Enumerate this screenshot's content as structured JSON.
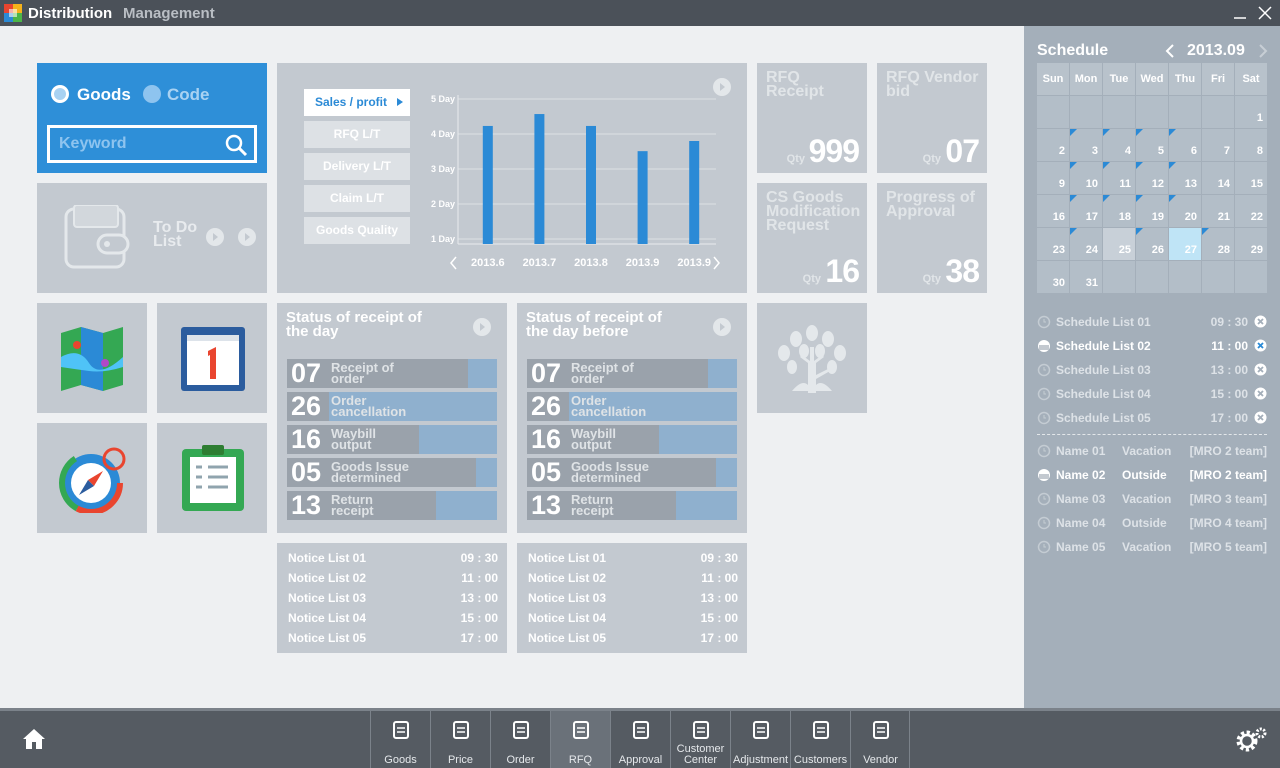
{
  "app": {
    "title_bold": "Distribution",
    "title_rest": "Management"
  },
  "search": {
    "options": [
      "Goods",
      "Code"
    ],
    "placeholder": "Keyword"
  },
  "todo": {
    "label": "To Do List"
  },
  "tabs": [
    "Sales / profit",
    "RFQ L/T",
    "Delivery L/T",
    "Claim L/T",
    "Goods Quality"
  ],
  "chart_data": {
    "type": "bar",
    "color": "#2b8ad6",
    "categories": [
      "2013.6",
      "2013.7",
      "2013.8",
      "2013.9",
      "2013.9"
    ],
    "values": [
      4.23,
      4.57,
      4.23,
      3.51,
      3.8
    ],
    "ylim": [
      1,
      5
    ],
    "yticks": [
      {
        "value": 1,
        "label": "1 Day"
      },
      {
        "value": 2,
        "label": "2 Day"
      },
      {
        "value": 3,
        "label": "3 Day"
      },
      {
        "value": 4,
        "label": "4 Day"
      },
      {
        "value": 5,
        "label": "5 Day"
      }
    ],
    "grid": true
  },
  "tiles": [
    {
      "title": "RFQ Receipt",
      "qty_label": "Qty",
      "qty": "999"
    },
    {
      "title": "RFQ Vendor bid",
      "qty_label": "Qty",
      "qty": "07"
    },
    {
      "title": "CS Goods Modification Request",
      "qty_label": "Qty",
      "qty": "16"
    },
    {
      "title": "Progress of Approval",
      "qty_label": "Qty",
      "qty": "38"
    }
  ],
  "status": [
    {
      "title": "Status of receipt of the day",
      "rows": [
        {
          "num": "07",
          "label": "Receipt of order",
          "fill": 86
        },
        {
          "num": "26",
          "label": "Order cancellation",
          "fill": 20
        },
        {
          "num": "16",
          "label": "Waybill output",
          "fill": 63
        },
        {
          "num": "05",
          "label": "Goods Issue determined",
          "fill": 90
        },
        {
          "num": "13",
          "label": "Return receipt",
          "fill": 71
        }
      ]
    },
    {
      "title": "Status of receipt of the day before",
      "rows": [
        {
          "num": "07",
          "label": "Receipt of order",
          "fill": 86
        },
        {
          "num": "26",
          "label": "Order cancellation",
          "fill": 20
        },
        {
          "num": "16",
          "label": "Waybill output",
          "fill": 63
        },
        {
          "num": "05",
          "label": "Goods Issue determined",
          "fill": 90
        },
        {
          "num": "13",
          "label": "Return receipt",
          "fill": 71
        }
      ]
    }
  ],
  "notices": [
    [
      {
        "name": "Notice List 01",
        "time": "09 : 30"
      },
      {
        "name": "Notice List 02",
        "time": "11 : 00"
      },
      {
        "name": "Notice List 03",
        "time": "13 : 00"
      },
      {
        "name": "Notice List 04",
        "time": "15 : 00"
      },
      {
        "name": "Notice List 05",
        "time": "17 : 00"
      }
    ],
    [
      {
        "name": "Notice List 01",
        "time": "09 : 30"
      },
      {
        "name": "Notice List 02",
        "time": "11 : 00"
      },
      {
        "name": "Notice List 03",
        "time": "13 : 00"
      },
      {
        "name": "Notice List 04",
        "time": "15 : 00"
      },
      {
        "name": "Notice List 05",
        "time": "17 : 00"
      }
    ]
  ],
  "calendar": {
    "title": "Schedule",
    "month": "2013.09",
    "weekdays": [
      "Sun",
      "Mon",
      "Tue",
      "Wed",
      "Thu",
      "Fri",
      "Sat"
    ],
    "weeks": [
      [
        null,
        null,
        null,
        null,
        null,
        null,
        1
      ],
      [
        2,
        3,
        4,
        5,
        6,
        7,
        8
      ],
      [
        9,
        10,
        11,
        12,
        13,
        14,
        15
      ],
      [
        16,
        17,
        18,
        19,
        20,
        21,
        22
      ],
      [
        23,
        24,
        25,
        26,
        27,
        28,
        29
      ],
      [
        30,
        31,
        null,
        null,
        null,
        null,
        null
      ]
    ],
    "event_days": [
      3,
      4,
      5,
      6,
      10,
      11,
      12,
      13,
      17,
      18,
      19,
      20,
      24,
      26,
      28
    ],
    "hover_day": 25,
    "selected_day": 27
  },
  "schedule": [
    {
      "name": "Schedule List 01",
      "time": "09 : 30",
      "active": false
    },
    {
      "name": "Schedule List 02",
      "time": "11 : 00",
      "active": true
    },
    {
      "name": "Schedule List 03",
      "time": "13 : 00",
      "active": false
    },
    {
      "name": "Schedule List 04",
      "time": "15 : 00",
      "active": false
    },
    {
      "name": "Schedule List 05",
      "time": "17 : 00",
      "active": false
    }
  ],
  "staff": [
    {
      "name": "Name 01",
      "status": "Vacation",
      "team": "[MRO 2 team]",
      "active": false
    },
    {
      "name": "Name 02",
      "status": "Outside",
      "team": "[MRO 2 team]",
      "active": true
    },
    {
      "name": "Name 03",
      "status": "Vacation",
      "team": "[MRO 3 team]",
      "active": false
    },
    {
      "name": "Name 04",
      "status": "Outside",
      "team": "[MRO 4 team]",
      "active": false
    },
    {
      "name": "Name 05",
      "status": "Vacation",
      "team": "[MRO 5 team]",
      "active": false
    }
  ],
  "nav": {
    "items": [
      "Goods",
      "Price",
      "Order",
      "RFQ",
      "Approval",
      "Customer Center",
      "Adjustment",
      "Customers",
      "Vendor"
    ],
    "active": 3
  }
}
